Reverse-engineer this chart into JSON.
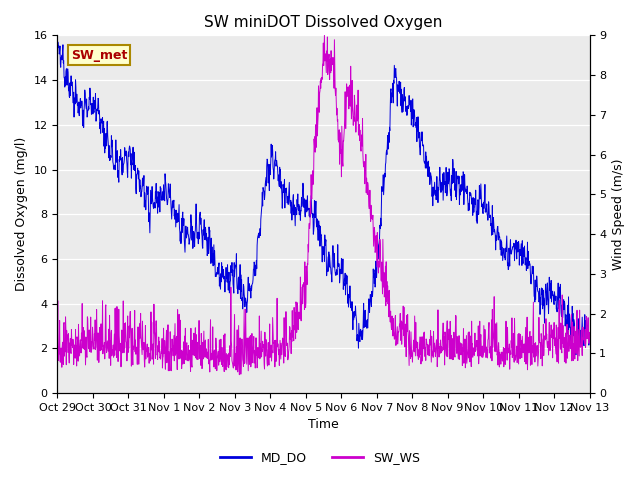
{
  "title": "SW miniDOT Dissolved Oxygen",
  "xlabel": "Time",
  "ylabel_left": "Dissolved Oxygen (mg/l)",
  "ylabel_right": "Wind Speed (m/s)",
  "ylim_left": [
    0,
    16
  ],
  "ylim_right": [
    0.0,
    9.0
  ],
  "yticks_left": [
    0,
    2,
    4,
    6,
    8,
    10,
    12,
    14,
    16
  ],
  "yticks_right": [
    0.0,
    1.0,
    2.0,
    3.0,
    4.0,
    5.0,
    6.0,
    7.0,
    8.0,
    9.0
  ],
  "color_do": "#0000dd",
  "color_ws": "#cc00cc",
  "legend_label_do": "MD_DO",
  "legend_label_ws": "SW_WS",
  "annotation_text": "SW_met",
  "annotation_color": "#aa0000",
  "annotation_bg": "#ffffcc",
  "annotation_border": "#aa8800",
  "background_color": "#ebebeb",
  "xtick_labels": [
    "Oct 29",
    "Oct 30",
    "Oct 31",
    "Nov 1",
    "Nov 2",
    "Nov 3",
    "Nov 4",
    "Nov 5",
    "Nov 6",
    "Nov 7",
    "Nov 8",
    "Nov 9",
    "Nov 10",
    "Nov 11",
    "Nov 12",
    "Nov 13"
  ],
  "title_fontsize": 11,
  "axis_label_fontsize": 9,
  "tick_fontsize": 8,
  "legend_fontsize": 9
}
